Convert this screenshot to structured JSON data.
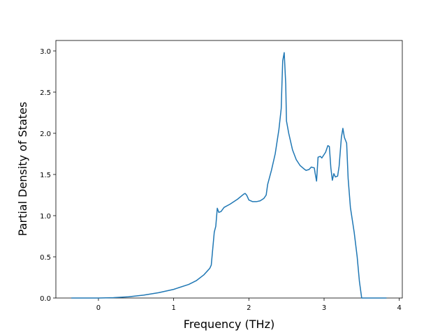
{
  "chart_data": {
    "type": "line",
    "xlabel": "Frequency (THz)",
    "ylabel": "Partial Density of States",
    "x": [
      -0.36,
      0,
      0.2,
      0.4,
      0.6,
      0.8,
      1.0,
      1.2,
      1.3,
      1.4,
      1.45,
      1.48,
      1.5,
      1.52,
      1.54,
      1.56,
      1.58,
      1.6,
      1.63,
      1.67,
      1.75,
      1.85,
      1.93,
      1.95,
      1.97,
      2.0,
      2.05,
      2.1,
      2.15,
      2.2,
      2.23,
      2.25,
      2.3,
      2.35,
      2.4,
      2.43,
      2.44,
      2.45,
      2.47,
      2.49,
      2.5,
      2.53,
      2.58,
      2.63,
      2.68,
      2.73,
      2.76,
      2.8,
      2.83,
      2.87,
      2.88,
      2.9,
      2.92,
      2.95,
      2.97,
      3.02,
      3.05,
      3.07,
      3.09,
      3.11,
      3.13,
      3.15,
      3.18,
      3.2,
      3.23,
      3.25,
      3.27,
      3.3,
      3.32,
      3.35,
      3.4,
      3.44,
      3.47,
      3.5,
      3.6,
      3.83
    ],
    "series": [
      {
        "color": "#1f77b4",
        "values": [
          0,
          0,
          0.004,
          0.015,
          0.035,
          0.065,
          0.105,
          0.165,
          0.21,
          0.28,
          0.33,
          0.36,
          0.4,
          0.6,
          0.8,
          0.87,
          1.09,
          1.04,
          1.05,
          1.1,
          1.14,
          1.2,
          1.26,
          1.27,
          1.25,
          1.19,
          1.17,
          1.17,
          1.18,
          1.21,
          1.25,
          1.38,
          1.55,
          1.75,
          2.05,
          2.3,
          2.6,
          2.88,
          2.98,
          2.6,
          2.15,
          2.0,
          1.8,
          1.68,
          1.61,
          1.57,
          1.55,
          1.56,
          1.59,
          1.58,
          1.52,
          1.42,
          1.71,
          1.72,
          1.7,
          1.77,
          1.85,
          1.84,
          1.58,
          1.43,
          1.51,
          1.47,
          1.48,
          1.6,
          1.95,
          2.06,
          1.95,
          1.88,
          1.45,
          1.1,
          0.8,
          0.5,
          0.2,
          0,
          0,
          0
        ]
      }
    ],
    "xlim": [
      -0.566,
      4.04
    ],
    "ylim": [
      0,
      3.127
    ],
    "xticks": [
      0,
      1,
      2,
      3,
      4
    ],
    "yticks": [
      {
        "value": 0,
        "label": "0.0"
      },
      0.5,
      {
        "value": 1,
        "label": "1.0"
      },
      1.5,
      {
        "value": 2,
        "label": "2.0"
      },
      2.5,
      {
        "value": 3,
        "label": "3.0"
      }
    ]
  }
}
